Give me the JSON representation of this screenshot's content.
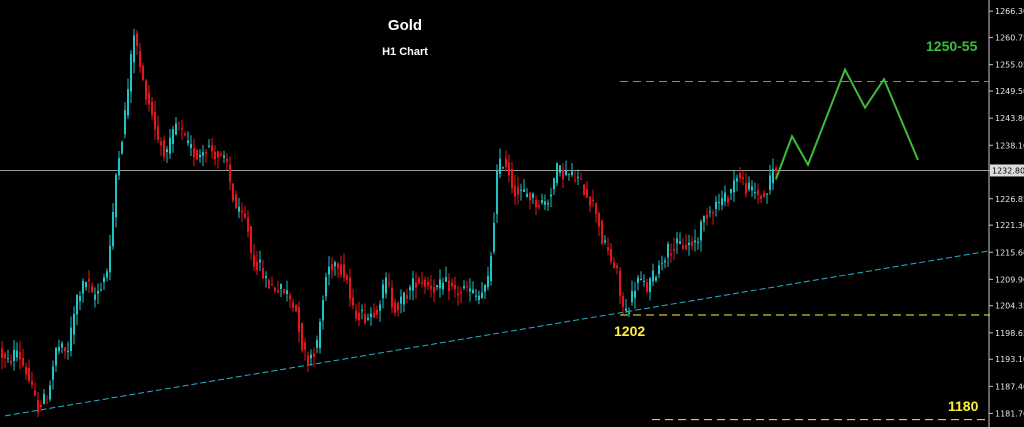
{
  "chart_data": {
    "type": "candlestick",
    "title": "Gold",
    "subtitle": "H1 Chart",
    "ylim": [
      1178.85,
      1268.65
    ],
    "y_ticks": [
      "1266.30",
      "1260.75",
      "1255.05",
      "1249.50",
      "1243.80",
      "1238.10",
      "1232.80",
      "1226.85",
      "1221.30",
      "1215.60",
      "1209.90",
      "1204.35",
      "1198.65",
      "1193.10",
      "1187.40",
      "1181.70"
    ],
    "current_price": "1232.80",
    "colors": {
      "up": "#21c4c4",
      "down": "#e8131b",
      "background": "#000000",
      "axis": "#c8c8c8",
      "resistance": "#3dbb3d",
      "support": "#ffef3a",
      "trendline": "#21b4c8"
    },
    "price_path": [
      [
        0,
        1196
      ],
      [
        10,
        1192
      ],
      [
        20,
        1195
      ],
      [
        30,
        1190
      ],
      [
        40,
        1183
      ],
      [
        50,
        1185
      ],
      [
        60,
        1196
      ],
      [
        70,
        1194
      ],
      [
        80,
        1206
      ],
      [
        90,
        1210
      ],
      [
        95,
        1206
      ],
      [
        100,
        1207
      ],
      [
        110,
        1212
      ],
      [
        115,
        1220
      ],
      [
        120,
        1235
      ],
      [
        125,
        1240
      ],
      [
        130,
        1248
      ],
      [
        137,
        1262
      ],
      [
        145,
        1252
      ],
      [
        155,
        1245
      ],
      [
        160,
        1240
      ],
      [
        170,
        1236
      ],
      [
        180,
        1243
      ],
      [
        190,
        1238
      ],
      [
        200,
        1236
      ],
      [
        210,
        1238
      ],
      [
        220,
        1236
      ],
      [
        230,
        1234
      ],
      [
        235,
        1228
      ],
      [
        240,
        1224
      ],
      [
        250,
        1222
      ],
      [
        255,
        1214
      ],
      [
        262,
        1213
      ],
      [
        270,
        1209
      ],
      [
        280,
        1208
      ],
      [
        290,
        1207
      ],
      [
        300,
        1203
      ],
      [
        305,
        1196
      ],
      [
        310,
        1193
      ],
      [
        320,
        1196
      ],
      [
        330,
        1212
      ],
      [
        340,
        1214
      ],
      [
        345,
        1212
      ],
      [
        350,
        1210
      ],
      [
        355,
        1203
      ],
      [
        360,
        1203
      ],
      [
        370,
        1202
      ],
      [
        380,
        1204
      ],
      [
        390,
        1210
      ],
      [
        395,
        1205
      ],
      [
        400,
        1204
      ],
      [
        410,
        1207
      ],
      [
        420,
        1210
      ],
      [
        430,
        1209
      ],
      [
        440,
        1208
      ],
      [
        450,
        1209
      ],
      [
        460,
        1207
      ],
      [
        470,
        1208
      ],
      [
        480,
        1206
      ],
      [
        490,
        1208
      ],
      [
        495,
        1217
      ],
      [
        500,
        1232
      ],
      [
        505,
        1235
      ],
      [
        510,
        1234
      ],
      [
        515,
        1230
      ],
      [
        520,
        1228
      ],
      [
        530,
        1228
      ],
      [
        540,
        1226
      ],
      [
        550,
        1226
      ],
      [
        560,
        1233
      ],
      [
        570,
        1232
      ],
      [
        580,
        1231
      ],
      [
        590,
        1228
      ],
      [
        600,
        1224
      ],
      [
        605,
        1218
      ],
      [
        610,
        1216
      ],
      [
        620,
        1211
      ],
      [
        625,
        1204
      ],
      [
        630,
        1203
      ],
      [
        640,
        1210
      ],
      [
        650,
        1208
      ],
      [
        660,
        1212
      ],
      [
        670,
        1216
      ],
      [
        680,
        1217
      ],
      [
        690,
        1217
      ],
      [
        700,
        1218
      ],
      [
        705,
        1222
      ],
      [
        710,
        1224
      ],
      [
        720,
        1226
      ],
      [
        730,
        1227
      ],
      [
        740,
        1232
      ],
      [
        750,
        1229
      ],
      [
        760,
        1228
      ],
      [
        768,
        1227
      ],
      [
        776,
        1233
      ]
    ],
    "projection": [
      [
        776,
        1231
      ],
      [
        792,
        1240
      ],
      [
        808,
        1234
      ],
      [
        845,
        1254
      ],
      [
        865,
        1246
      ],
      [
        884,
        1252
      ],
      [
        918,
        1235
      ]
    ],
    "levels": [
      {
        "label": "1250-55",
        "value": 1251.5,
        "x_start": 620,
        "x_end": 990
      },
      {
        "label": "1202",
        "value": 1202.4,
        "x_start": 620,
        "x_end": 990
      },
      {
        "label": "1180",
        "value": 1180.4,
        "x_start": 652,
        "x_end": 990
      }
    ],
    "trendline": [
      [
        5,
        1181.2
      ],
      [
        990,
        1215.9
      ]
    ]
  }
}
